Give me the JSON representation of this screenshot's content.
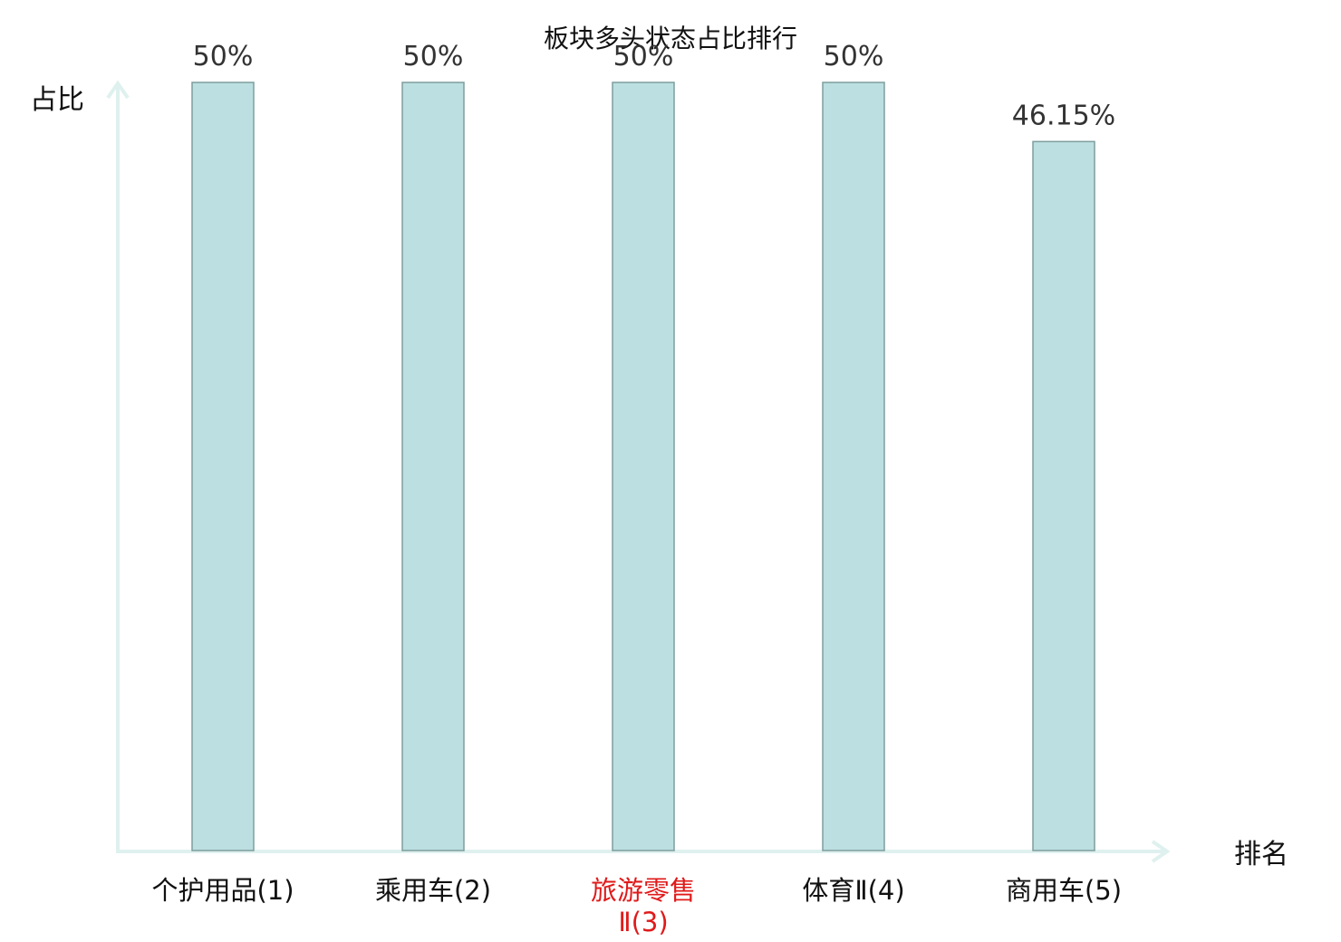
{
  "chart_data": {
    "type": "bar",
    "title": "板块多头状态占比排行",
    "ylabel": "占比",
    "xlabel": "排名",
    "ylim": [
      0,
      50
    ],
    "categories": [
      {
        "lines": [
          "个护用品(1)"
        ],
        "highlight": false
      },
      {
        "lines": [
          "乘用车(2)"
        ],
        "highlight": false
      },
      {
        "lines": [
          "旅游零售",
          "Ⅱ(3)"
        ],
        "highlight": true
      },
      {
        "lines": [
          "体育Ⅱ(4)"
        ],
        "highlight": false
      },
      {
        "lines": [
          "商用车(5)"
        ],
        "highlight": false
      }
    ],
    "values": [
      50,
      50,
      50,
      50,
      46.15
    ],
    "value_labels": [
      "50%",
      "50%",
      "50%",
      "50%",
      "46.15%"
    ],
    "grid": false,
    "legend": "none"
  },
  "colors": {
    "bar_fill": "#bce0e1",
    "bar_edge": "#7e9d9e",
    "axis": "#dff1ee",
    "highlight_text": "#e01a1a"
  }
}
